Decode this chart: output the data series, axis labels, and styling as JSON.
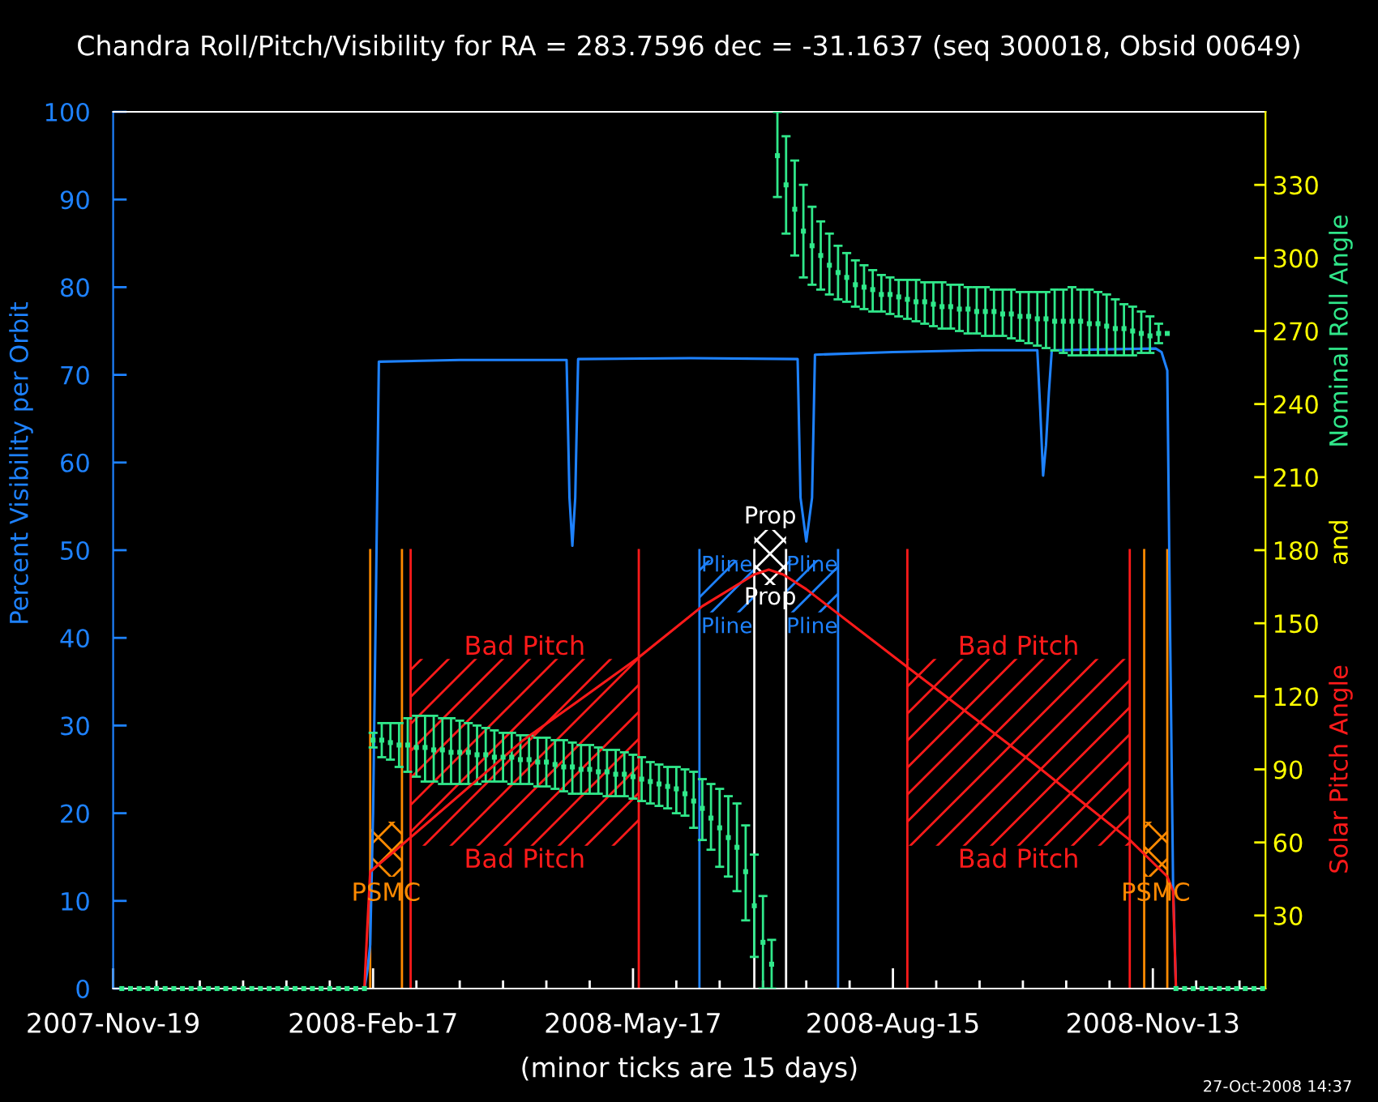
{
  "chart_data": {
    "type": "line",
    "title": "Chandra Roll/Pitch/Visibility for RA = 283.7596 dec = -31.1637 (seq 300018, Obsid 00649)",
    "xlabel": "(minor ticks are 15 days)",
    "ylabel": "Percent Visibility per Orbit",
    "y2label": "and",
    "annotations": [
      "27-Oct-2008 14:37"
    ],
    "xlim": [
      "2007-11-19",
      "2008-12-22"
    ],
    "xticks": [
      {
        "value": "2007-11-19",
        "label": "2007-Nov-19"
      },
      {
        "value": "2007-12-04",
        "label": null
      },
      {
        "value": "2007-12-19",
        "label": null
      },
      {
        "value": "2008-01-03",
        "label": null
      },
      {
        "value": "2008-01-18",
        "label": null
      },
      {
        "value": "2008-02-02",
        "label": null
      },
      {
        "value": "2008-02-17",
        "label": "2008-Feb-17"
      },
      {
        "value": "2008-03-03",
        "label": null
      },
      {
        "value": "2008-03-18",
        "label": null
      },
      {
        "value": "2008-04-02",
        "label": null
      },
      {
        "value": "2008-04-17",
        "label": null
      },
      {
        "value": "2008-05-02",
        "label": null
      },
      {
        "value": "2008-05-17",
        "label": "2008-May-17"
      },
      {
        "value": "2008-06-01",
        "label": null
      },
      {
        "value": "2008-06-16",
        "label": null
      },
      {
        "value": "2008-07-01",
        "label": null
      },
      {
        "value": "2008-07-16",
        "label": null
      },
      {
        "value": "2008-07-31",
        "label": null
      },
      {
        "value": "2008-08-15",
        "label": "2008-Aug-15"
      },
      {
        "value": "2008-08-30",
        "label": null
      },
      {
        "value": "2008-09-14",
        "label": null
      },
      {
        "value": "2008-09-29",
        "label": null
      },
      {
        "value": "2008-10-14",
        "label": null
      },
      {
        "value": "2008-10-29",
        "label": null
      },
      {
        "value": "2008-11-13",
        "label": "2008-Nov-13"
      },
      {
        "value": "2008-11-28",
        "label": null
      },
      {
        "value": "2008-12-13",
        "label": null
      }
    ],
    "ylim": [
      0,
      100
    ],
    "yticks": [
      0,
      10,
      20,
      30,
      40,
      50,
      60,
      70,
      80,
      90,
      100
    ],
    "y2lim": [
      0,
      360
    ],
    "y2ticks": [
      30,
      60,
      90,
      120,
      150,
      180,
      210,
      240,
      270,
      300,
      330
    ],
    "grid": false,
    "legend": false,
    "ref_lines": [
      {
        "axis": "x",
        "value": "2008-02-16",
        "color": "#ff8a00"
      },
      {
        "axis": "x",
        "value": "2008-02-27",
        "color": "#ff8a00"
      },
      {
        "axis": "x",
        "value": "2008-03-01",
        "color": "#ff1a1a"
      },
      {
        "axis": "x",
        "value": "2008-05-19",
        "color": "#ff1a1a"
      },
      {
        "axis": "x",
        "value": "2008-06-09",
        "color": "#1e82ff"
      },
      {
        "axis": "x",
        "value": "2008-06-28",
        "color": "#ffffff"
      },
      {
        "axis": "x",
        "value": "2008-07-09",
        "color": "#ffffff"
      },
      {
        "axis": "x",
        "value": "2008-07-27",
        "color": "#1e82ff"
      },
      {
        "axis": "x",
        "value": "2008-08-20",
        "color": "#ff1a1a"
      },
      {
        "axis": "x",
        "value": "2008-11-05",
        "color": "#ff1a1a"
      },
      {
        "axis": "x",
        "value": "2008-11-10",
        "color": "#ff8a00"
      },
      {
        "axis": "x",
        "value": "2008-11-18",
        "color": "#ff8a00"
      }
    ],
    "bands": [
      {
        "axis": "x",
        "from": "2008-02-16",
        "to": "2008-02-27",
        "label": "PSMC",
        "color": "#ff8a00"
      },
      {
        "axis": "x",
        "from": "2008-03-01",
        "to": "2008-05-19",
        "label": "Bad Pitch",
        "color": "#ff1a1a"
      },
      {
        "axis": "x",
        "from": "2008-06-09",
        "to": "2008-06-28",
        "label": "Pline",
        "color": "#1e82ff"
      },
      {
        "axis": "x",
        "from": "2008-07-09",
        "to": "2008-07-27",
        "label": "Pline",
        "color": "#1e82ff"
      },
      {
        "axis": "x",
        "from": "2008-08-20",
        "to": "2008-11-05",
        "label": "Bad Pitch",
        "color": "#ff1a1a"
      },
      {
        "axis": "x",
        "from": "2008-11-10",
        "to": "2008-11-18",
        "label": "PSMC",
        "color": "#ff8a00"
      },
      {
        "axis": "x",
        "from": "2008-06-28",
        "to": "2008-07-09",
        "label": "Prop",
        "color": "#ffffff"
      }
    ],
    "series": [
      {
        "color": "#1e82ff",
        "x": [
          "2008-02-14",
          "2008-02-15",
          "2008-02-16",
          "2008-02-17",
          "2008-02-18",
          "2008-02-19",
          "2008-03-18",
          "2008-04-24",
          "2008-04-25",
          "2008-04-26",
          "2008-04-27",
          "2008-04-28",
          "2008-06-06",
          "2008-07-13",
          "2008-07-14",
          "2008-07-16",
          "2008-07-18",
          "2008-07-19",
          "2008-08-15",
          "2008-09-14",
          "2008-10-04",
          "2008-10-05",
          "2008-10-06",
          "2008-10-07",
          "2008-10-08",
          "2008-10-09",
          "2008-11-14",
          "2008-11-16",
          "2008-11-18",
          "2008-11-19",
          "2008-11-20",
          "2008-11-21"
        ],
        "values": [
          0,
          2,
          5,
          20,
          45,
          71.5,
          71.7,
          71.7,
          56,
          50.5,
          56,
          71.8,
          71.9,
          71.8,
          56,
          51,
          56,
          72.3,
          72.6,
          72.8,
          72.8,
          66,
          58.5,
          62,
          68,
          72.8,
          73,
          72.6,
          70.5,
          40,
          12,
          0
        ]
      },
      {
        "type": "scatter",
        "name": "Nominal Roll Angle",
        "color": "#30e88a",
        "axis": "y2",
        "marker": "square",
        "x": [
          "2007-11-22",
          "2007-11-25",
          "2007-11-28",
          "2007-12-01",
          "2007-12-04",
          "2007-12-07",
          "2007-12-10",
          "2007-12-13",
          "2007-12-16",
          "2007-12-19",
          "2007-12-22",
          "2007-12-25",
          "2007-12-28",
          "2007-12-31",
          "2008-01-03",
          "2008-01-06",
          "2008-01-09",
          "2008-01-12",
          "2008-01-15",
          "2008-01-18",
          "2008-01-21",
          "2008-01-24",
          "2008-01-27",
          "2008-01-30",
          "2008-02-02",
          "2008-02-05",
          "2008-02-08",
          "2008-02-11",
          "2008-02-14",
          "2008-02-17",
          "2008-02-20",
          "2008-02-23",
          "2008-02-26",
          "2008-02-29",
          "2008-03-03",
          "2008-03-06",
          "2008-03-09",
          "2008-03-12",
          "2008-03-15",
          "2008-03-18",
          "2008-03-21",
          "2008-03-24",
          "2008-03-27",
          "2008-03-30",
          "2008-04-02",
          "2008-04-05",
          "2008-04-08",
          "2008-04-11",
          "2008-04-14",
          "2008-04-17",
          "2008-04-20",
          "2008-04-23",
          "2008-04-26",
          "2008-04-29",
          "2008-05-02",
          "2008-05-05",
          "2008-05-08",
          "2008-05-11",
          "2008-05-14",
          "2008-05-17",
          "2008-05-20",
          "2008-05-23",
          "2008-05-26",
          "2008-05-29",
          "2008-06-01",
          "2008-06-04",
          "2008-06-07",
          "2008-06-10",
          "2008-06-13",
          "2008-06-16",
          "2008-06-19",
          "2008-06-22",
          "2008-06-25",
          "2008-06-28",
          "2008-07-01",
          "2008-07-04",
          "2008-07-06",
          "2008-07-09",
          "2008-07-12",
          "2008-07-15",
          "2008-07-18",
          "2008-07-21",
          "2008-07-24",
          "2008-07-27",
          "2008-07-30",
          "2008-08-02",
          "2008-08-05",
          "2008-08-08",
          "2008-08-11",
          "2008-08-14",
          "2008-08-17",
          "2008-08-20",
          "2008-08-23",
          "2008-08-26",
          "2008-08-29",
          "2008-09-01",
          "2008-09-04",
          "2008-09-07",
          "2008-09-10",
          "2008-09-13",
          "2008-09-16",
          "2008-09-19",
          "2008-09-22",
          "2008-09-25",
          "2008-09-28",
          "2008-10-01",
          "2008-10-04",
          "2008-10-07",
          "2008-10-10",
          "2008-10-13",
          "2008-10-16",
          "2008-10-19",
          "2008-10-22",
          "2008-10-25",
          "2008-10-28",
          "2008-10-31",
          "2008-11-03",
          "2008-11-06",
          "2008-11-09",
          "2008-11-12",
          "2008-11-15",
          "2008-11-18",
          "2008-11-21",
          "2008-11-24",
          "2008-11-27",
          "2008-11-30",
          "2008-12-03",
          "2008-12-06",
          "2008-12-09",
          "2008-12-12",
          "2008-12-15",
          "2008-12-18",
          "2008-12-21"
        ],
        "values": [
          0,
          0,
          0,
          0,
          0,
          0,
          0,
          0,
          0,
          0,
          0,
          0,
          0,
          0,
          0,
          0,
          0,
          0,
          0,
          0,
          0,
          0,
          0,
          0,
          0,
          0,
          0,
          0,
          0,
          102,
          102,
          101,
          100,
          100,
          99,
          99,
          98,
          98,
          97,
          97,
          97,
          96,
          96,
          95,
          95,
          95,
          94,
          94,
          93,
          93,
          92,
          91,
          91,
          90,
          90,
          89,
          89,
          88,
          88,
          87,
          86,
          85,
          84,
          83,
          82,
          80,
          77,
          74,
          70,
          66,
          62,
          58,
          48,
          34,
          19,
          10,
          342,
          330,
          320,
          311,
          305,
          301,
          297,
          294,
          292,
          289,
          288,
          287,
          285,
          285,
          284,
          283,
          282,
          282,
          281,
          280,
          280,
          279,
          279,
          278,
          278,
          278,
          277,
          277,
          276,
          276,
          275,
          275,
          274,
          274,
          274,
          274,
          273,
          273,
          272,
          271,
          271,
          270,
          269,
          268,
          269,
          269,
          0,
          0,
          0,
          0,
          0,
          0,
          0,
          0,
          0,
          0,
          0
        ],
        "errors": [
          null,
          null,
          null,
          null,
          null,
          null,
          null,
          null,
          null,
          null,
          null,
          null,
          null,
          null,
          null,
          null,
          null,
          null,
          null,
          null,
          null,
          null,
          null,
          null,
          null,
          null,
          null,
          null,
          null,
          [
            99,
            105
          ],
          [
            95,
            109
          ],
          [
            94,
            109
          ],
          [
            91,
            109
          ],
          [
            89,
            111
          ],
          [
            87,
            112
          ],
          [
            85,
            112
          ],
          [
            85,
            112
          ],
          [
            84,
            111
          ],
          [
            84,
            111
          ],
          [
            84,
            110
          ],
          [
            84,
            109
          ],
          [
            84,
            108
          ],
          [
            85,
            107
          ],
          [
            85,
            106
          ],
          [
            85,
            105
          ],
          [
            84,
            105
          ],
          [
            84,
            104
          ],
          [
            84,
            104
          ],
          [
            83,
            103
          ],
          [
            83,
            103
          ],
          [
            82,
            102
          ],
          [
            81,
            102
          ],
          [
            80,
            101
          ],
          [
            80,
            100
          ],
          [
            80,
            100
          ],
          [
            80,
            99
          ],
          [
            79,
            98
          ],
          [
            79,
            98
          ],
          [
            79,
            97
          ],
          [
            78,
            96
          ],
          [
            77,
            95
          ],
          [
            76,
            93
          ],
          [
            75,
            92
          ],
          [
            74,
            91
          ],
          [
            72,
            91
          ],
          [
            71,
            90
          ],
          [
            66,
            89
          ],
          [
            61,
            86
          ],
          [
            57,
            84
          ],
          [
            50,
            82
          ],
          [
            46,
            79
          ],
          [
            40,
            76
          ],
          [
            28,
            67
          ],
          [
            13,
            55
          ],
          [
            0,
            38
          ],
          [
            0,
            20
          ],
          [
            325,
            360
          ],
          [
            310,
            350
          ],
          [
            301,
            340
          ],
          [
            292,
            330
          ],
          [
            289,
            321
          ],
          [
            287,
            315
          ],
          [
            285,
            310
          ],
          [
            283,
            305
          ],
          [
            282,
            302
          ],
          [
            280,
            299
          ],
          [
            279,
            297
          ],
          [
            278,
            295
          ],
          [
            278,
            293
          ],
          [
            277,
            292
          ],
          [
            276,
            291
          ],
          [
            275,
            291
          ],
          [
            274,
            291
          ],
          [
            273,
            290
          ],
          [
            272,
            290
          ],
          [
            271,
            290
          ],
          [
            271,
            289
          ],
          [
            270,
            289
          ],
          [
            269,
            288
          ],
          [
            269,
            288
          ],
          [
            268,
            288
          ],
          [
            268,
            287
          ],
          [
            268,
            287
          ],
          [
            267,
            287
          ],
          [
            266,
            286
          ],
          [
            265,
            286
          ],
          [
            264,
            286
          ],
          [
            263,
            286
          ],
          [
            262,
            287
          ],
          [
            261,
            287
          ],
          [
            260,
            288
          ],
          [
            260,
            287
          ],
          [
            260,
            287
          ],
          [
            260,
            286
          ],
          [
            260,
            285
          ],
          [
            260,
            283
          ],
          [
            260,
            281
          ],
          [
            260,
            280
          ],
          [
            261,
            278
          ],
          [
            261,
            276
          ],
          [
            265,
            273
          ],
          null,
          null,
          null,
          null,
          null,
          null,
          null,
          null,
          null,
          null,
          null,
          null
        ]
      },
      {
        "name": "Solar Pitch Angle",
        "color": "#ff1a1a",
        "axis": "y2",
        "x": [
          "2008-02-14",
          "2008-02-15",
          "2008-02-16",
          "2008-02-26",
          "2008-04-09",
          "2008-04-28",
          "2008-05-19",
          "2008-06-10",
          "2008-06-28",
          "2008-07-03",
          "2008-07-08",
          "2008-07-16",
          "2008-07-28",
          "2008-08-20",
          "2008-09-30",
          "2008-11-05",
          "2008-11-18",
          "2008-11-20",
          "2008-11-21"
        ],
        "values": [
          0,
          25,
          48,
          58,
          102,
          118,
          136,
          157,
          170,
          172,
          170,
          164,
          153,
          132,
          95,
          61,
          46,
          40,
          0
        ]
      }
    ]
  }
}
